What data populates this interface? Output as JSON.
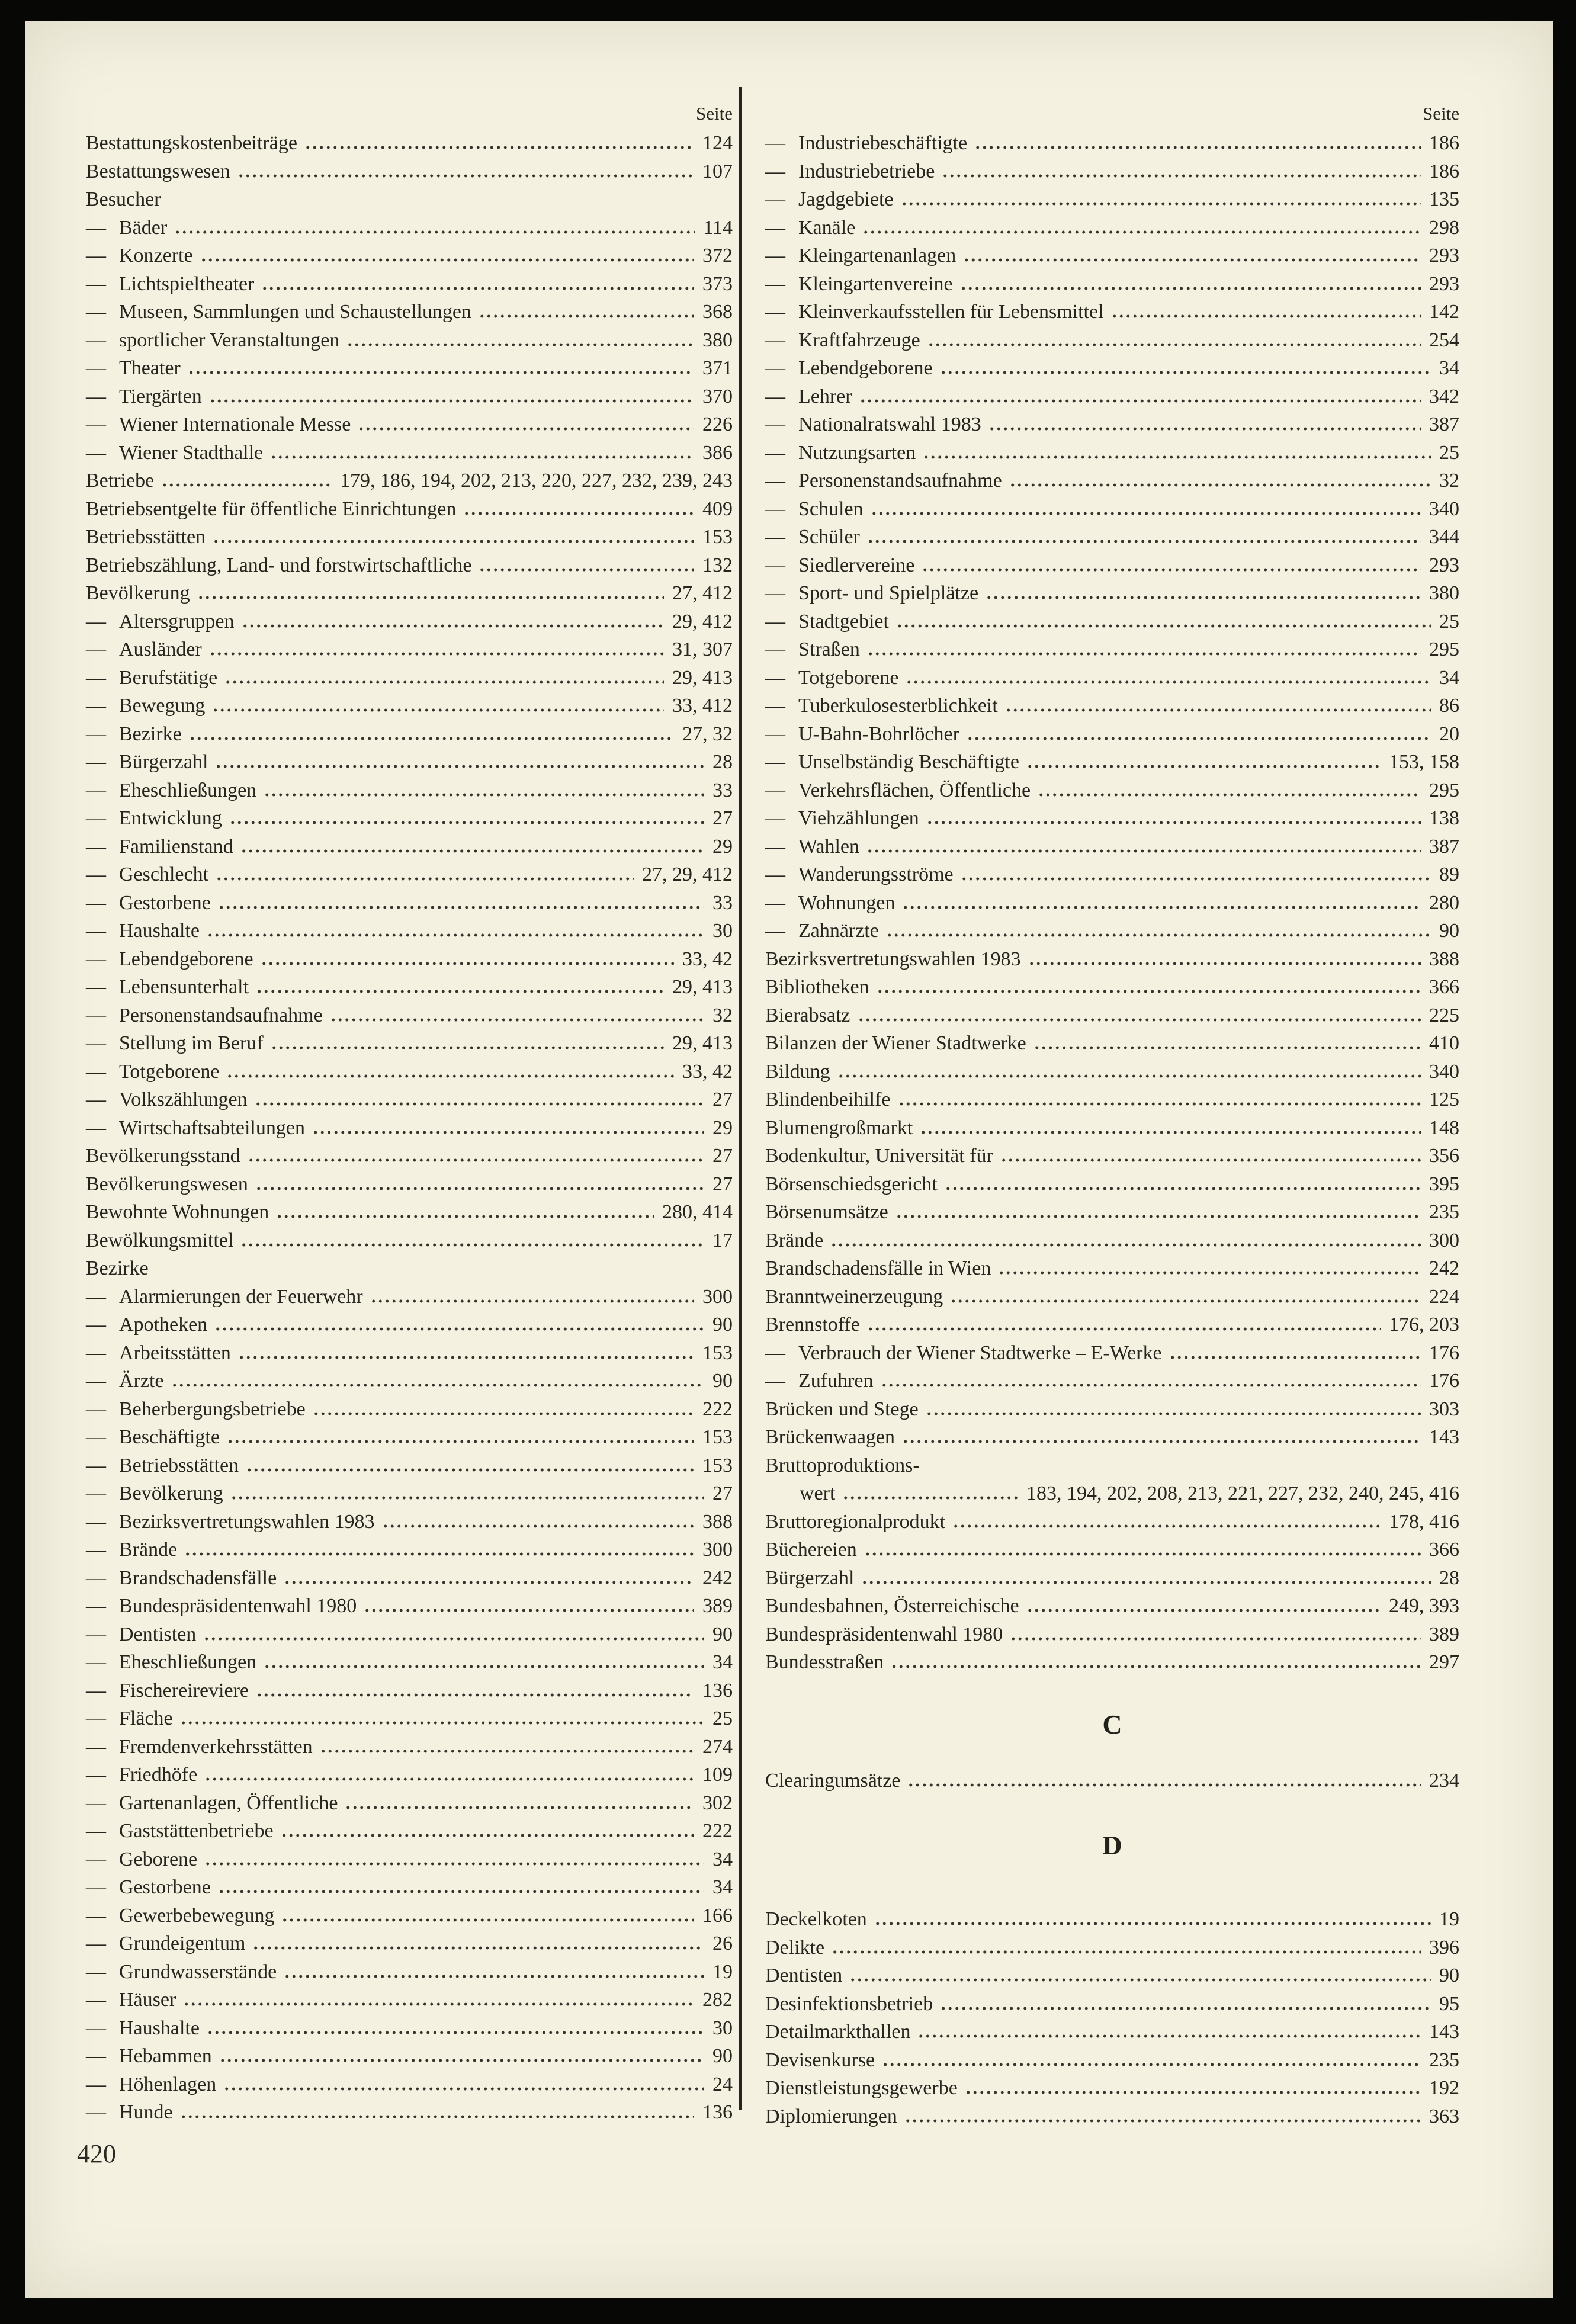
{
  "page": {
    "footer": "420"
  },
  "glyphs": {
    "dash": "—"
  },
  "columns": {
    "left": {
      "header": "Seite",
      "items": [
        {
          "label": "Bestattungskostenbeiträge",
          "pages": "124"
        },
        {
          "label": "Bestattungswesen",
          "pages": "107"
        },
        {
          "label": "Besucher",
          "pages": ""
        },
        {
          "label": "Bäder",
          "pages": "114",
          "sub": true
        },
        {
          "label": "Konzerte",
          "pages": "372",
          "sub": true
        },
        {
          "label": "Lichtspieltheater",
          "pages": "373",
          "sub": true
        },
        {
          "label": "Museen, Sammlungen und Schaustellungen",
          "pages": "368",
          "sub": true
        },
        {
          "label": "sportlicher Veranstaltungen",
          "pages": "380",
          "sub": true
        },
        {
          "label": "Theater",
          "pages": "371",
          "sub": true
        },
        {
          "label": "Tiergärten",
          "pages": "370",
          "sub": true
        },
        {
          "label": "Wiener Internationale Messe",
          "pages": "226",
          "sub": true
        },
        {
          "label": "Wiener Stadthalle",
          "pages": "386",
          "sub": true
        },
        {
          "label": "Betriebe",
          "pages": "179, 186, 194, 202, 213, 220, 227, 232, 239, 243"
        },
        {
          "label": "Betriebsentgelte für öffentliche Einrichtungen",
          "pages": "409"
        },
        {
          "label": "Betriebsstätten",
          "pages": "153"
        },
        {
          "label": "Betriebszählung, Land- und forstwirtschaftliche",
          "pages": "132"
        },
        {
          "label": "Bevölkerung",
          "pages": "27, 412"
        },
        {
          "label": "Altersgruppen",
          "pages": "29, 412",
          "sub": true
        },
        {
          "label": "Ausländer",
          "pages": "31, 307",
          "sub": true
        },
        {
          "label": "Berufstätige",
          "pages": "29, 413",
          "sub": true
        },
        {
          "label": "Bewegung",
          "pages": "33, 412",
          "sub": true
        },
        {
          "label": "Bezirke",
          "pages": "27, 32",
          "sub": true
        },
        {
          "label": "Bürgerzahl",
          "pages": "28",
          "sub": true
        },
        {
          "label": "Eheschließungen",
          "pages": "33",
          "sub": true
        },
        {
          "label": "Entwicklung",
          "pages": "27",
          "sub": true
        },
        {
          "label": "Familienstand",
          "pages": "29",
          "sub": true
        },
        {
          "label": "Geschlecht",
          "pages": "27, 29, 412",
          "sub": true
        },
        {
          "label": "Gestorbene",
          "pages": "33",
          "sub": true
        },
        {
          "label": "Haushalte",
          "pages": "30",
          "sub": true
        },
        {
          "label": "Lebendgeborene",
          "pages": "33, 42",
          "sub": true
        },
        {
          "label": "Lebensunterhalt",
          "pages": "29, 413",
          "sub": true
        },
        {
          "label": "Personenstandsaufnahme",
          "pages": "32",
          "sub": true
        },
        {
          "label": "Stellung im Beruf",
          "pages": "29, 413",
          "sub": true
        },
        {
          "label": "Totgeborene",
          "pages": "33, 42",
          "sub": true
        },
        {
          "label": "Volkszählungen",
          "pages": "27",
          "sub": true
        },
        {
          "label": "Wirtschaftsabteilungen",
          "pages": "29",
          "sub": true
        },
        {
          "label": "Bevölkerungsstand",
          "pages": "27"
        },
        {
          "label": "Bevölkerungswesen",
          "pages": "27"
        },
        {
          "label": "Bewohnte Wohnungen",
          "pages": "280, 414"
        },
        {
          "label": "Bewölkungsmittel",
          "pages": "17"
        },
        {
          "label": "Bezirke",
          "pages": ""
        },
        {
          "label": "Alarmierungen der Feuerwehr",
          "pages": "300",
          "sub": true
        },
        {
          "label": "Apotheken",
          "pages": "90",
          "sub": true
        },
        {
          "label": "Arbeitsstätten",
          "pages": "153",
          "sub": true
        },
        {
          "label": "Ärzte",
          "pages": "90",
          "sub": true
        },
        {
          "label": "Beherbergungsbetriebe",
          "pages": "222",
          "sub": true
        },
        {
          "label": "Beschäftigte",
          "pages": "153",
          "sub": true
        },
        {
          "label": "Betriebsstätten",
          "pages": "153",
          "sub": true
        },
        {
          "label": "Bevölkerung",
          "pages": "27",
          "sub": true
        },
        {
          "label": "Bezirksvertretungswahlen 1983",
          "pages": "388",
          "sub": true
        },
        {
          "label": "Brände",
          "pages": "300",
          "sub": true
        },
        {
          "label": "Brandschadensfälle",
          "pages": "242",
          "sub": true
        },
        {
          "label": "Bundespräsidentenwahl 1980",
          "pages": "389",
          "sub": true
        },
        {
          "label": "Dentisten",
          "pages": "90",
          "sub": true
        },
        {
          "label": "Eheschließungen",
          "pages": "34",
          "sub": true
        },
        {
          "label": "Fischereireviere",
          "pages": "136",
          "sub": true
        },
        {
          "label": "Fläche",
          "pages": "25",
          "sub": true
        },
        {
          "label": "Fremdenverkehrsstätten",
          "pages": "274",
          "sub": true
        },
        {
          "label": "Friedhöfe",
          "pages": "109",
          "sub": true
        },
        {
          "label": "Gartenanlagen, Öffentliche",
          "pages": "302",
          "sub": true
        },
        {
          "label": "Gaststättenbetriebe",
          "pages": "222",
          "sub": true
        },
        {
          "label": "Geborene",
          "pages": "34",
          "sub": true
        },
        {
          "label": "Gestorbene",
          "pages": "34",
          "sub": true
        },
        {
          "label": "Gewerbebewegung",
          "pages": "166",
          "sub": true
        },
        {
          "label": "Grundeigentum",
          "pages": "26",
          "sub": true
        },
        {
          "label": "Grundwasserstände",
          "pages": "19",
          "sub": true
        },
        {
          "label": "Häuser",
          "pages": "282",
          "sub": true
        },
        {
          "label": "Haushalte",
          "pages": "30",
          "sub": true
        },
        {
          "label": "Hebammen",
          "pages": "90",
          "sub": true
        },
        {
          "label": "Höhenlagen",
          "pages": "24",
          "sub": true
        },
        {
          "label": "Hunde",
          "pages": "136",
          "sub": true
        }
      ]
    },
    "right": {
      "header": "Seite",
      "items": [
        {
          "label": "Industriebeschäftigte",
          "pages": "186",
          "sub": true
        },
        {
          "label": "Industriebetriebe",
          "pages": "186",
          "sub": true
        },
        {
          "label": "Jagdgebiete",
          "pages": "135",
          "sub": true
        },
        {
          "label": "Kanäle",
          "pages": "298",
          "sub": true
        },
        {
          "label": "Kleingartenanlagen",
          "pages": "293",
          "sub": true
        },
        {
          "label": "Kleingartenvereine",
          "pages": "293",
          "sub": true
        },
        {
          "label": "Kleinverkaufsstellen für Lebensmittel",
          "pages": "142",
          "sub": true
        },
        {
          "label": "Kraftfahrzeuge",
          "pages": "254",
          "sub": true
        },
        {
          "label": "Lebendgeborene",
          "pages": "34",
          "sub": true
        },
        {
          "label": "Lehrer",
          "pages": "342",
          "sub": true
        },
        {
          "label": "Nationalratswahl 1983",
          "pages": "387",
          "sub": true
        },
        {
          "label": "Nutzungsarten",
          "pages": "25",
          "sub": true
        },
        {
          "label": "Personenstandsaufnahme",
          "pages": "32",
          "sub": true
        },
        {
          "label": "Schulen",
          "pages": "340",
          "sub": true
        },
        {
          "label": "Schüler",
          "pages": "344",
          "sub": true
        },
        {
          "label": "Siedlervereine",
          "pages": "293",
          "sub": true
        },
        {
          "label": "Sport- und Spielplätze",
          "pages": "380",
          "sub": true
        },
        {
          "label": "Stadtgebiet",
          "pages": "25",
          "sub": true
        },
        {
          "label": "Straßen",
          "pages": "295",
          "sub": true
        },
        {
          "label": "Totgeborene",
          "pages": "34",
          "sub": true
        },
        {
          "label": "Tuberkulosesterblichkeit",
          "pages": "86",
          "sub": true
        },
        {
          "label": "U-Bahn-Bohrlöcher",
          "pages": "20",
          "sub": true
        },
        {
          "label": "Unselbständig Beschäftigte",
          "pages": "153, 158",
          "sub": true
        },
        {
          "label": "Verkehrsflächen, Öffentliche",
          "pages": "295",
          "sub": true
        },
        {
          "label": "Viehzählungen",
          "pages": "138",
          "sub": true
        },
        {
          "label": "Wahlen",
          "pages": "387",
          "sub": true
        },
        {
          "label": "Wanderungsströme",
          "pages": "89",
          "sub": true
        },
        {
          "label": "Wohnungen",
          "pages": "280",
          "sub": true
        },
        {
          "label": "Zahnärzte",
          "pages": "90",
          "sub": true
        },
        {
          "label": "Bezirksvertretungswahlen 1983",
          "pages": "388"
        },
        {
          "label": "Bibliotheken",
          "pages": "366"
        },
        {
          "label": "Bierabsatz",
          "pages": "225"
        },
        {
          "label": "Bilanzen der Wiener Stadtwerke",
          "pages": "410"
        },
        {
          "label": "Bildung",
          "pages": "340"
        },
        {
          "label": "Blindenbeihilfe",
          "pages": "125"
        },
        {
          "label": "Blumengroßmarkt",
          "pages": "148"
        },
        {
          "label": "Bodenkultur, Universität für",
          "pages": "356"
        },
        {
          "label": "Börsenschiedsgericht",
          "pages": "395"
        },
        {
          "label": "Börsenumsätze",
          "pages": "235"
        },
        {
          "label": "Brände",
          "pages": "300"
        },
        {
          "label": "Brandschadensfälle in Wien",
          "pages": "242"
        },
        {
          "label": "Branntweinerzeugung",
          "pages": "224"
        },
        {
          "label": "Brennstoffe",
          "pages": "176, 203"
        },
        {
          "label": "Verbrauch der Wiener Stadtwerke – E-Werke",
          "pages": "176",
          "sub": true
        },
        {
          "label": "Zufuhren",
          "pages": "176",
          "sub": true
        },
        {
          "label": "Brücken und Stege",
          "pages": "303"
        },
        {
          "label": "Brückenwaagen",
          "pages": "143"
        },
        {
          "label": "Bruttoproduktions-",
          "pages": ""
        },
        {
          "label": "wert",
          "pages": "183, 194, 202, 208, 213, 221, 227, 232, 240, 245, 416",
          "indent": true
        },
        {
          "label": "Bruttoregionalprodukt",
          "pages": "178, 416"
        },
        {
          "label": "Büchereien",
          "pages": "366"
        },
        {
          "label": "Bürgerzahl",
          "pages": "28"
        },
        {
          "label": "Bundesbahnen, Österreichische",
          "pages": "249, 393"
        },
        {
          "label": "Bundespräsidentenwahl 1980",
          "pages": "389"
        },
        {
          "label": "Bundesstraßen",
          "pages": "297"
        },
        {
          "heading": "C"
        },
        {
          "label": "Clearingumsätze",
          "pages": "234"
        },
        {
          "heading": "D",
          "second": true
        },
        {
          "label": "Deckelkoten",
          "pages": "19"
        },
        {
          "label": "Delikte",
          "pages": "396"
        },
        {
          "label": "Dentisten",
          "pages": "90"
        },
        {
          "label": "Desinfektionsbetrieb",
          "pages": "95"
        },
        {
          "label": "Detailmarkthallen",
          "pages": "143"
        },
        {
          "label": "Devisenkurse",
          "pages": "235"
        },
        {
          "label": "Dienstleistungsgewerbe",
          "pages": "192"
        },
        {
          "label": "Diplomierungen",
          "pages": "363"
        }
      ]
    }
  }
}
